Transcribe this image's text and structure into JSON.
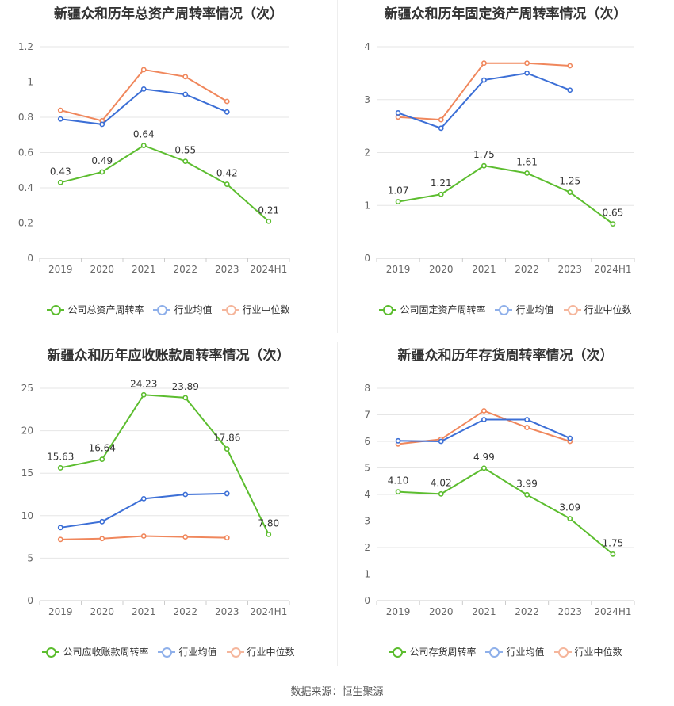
{
  "colors": {
    "company": "#5cbd2f",
    "industry_avg": "#3c6fd6",
    "industry_median": "#f0875c",
    "grid": "#e6e6e6"
  },
  "source_text": "数据来源：恒生聚源",
  "chart_data": [
    {
      "type": "line",
      "title": "新疆众和历年总资产周转率情况（次）",
      "categories": [
        "2019",
        "2020",
        "2021",
        "2022",
        "2023",
        "2024H1"
      ],
      "ylim": [
        0,
        1.2
      ],
      "yticks": [
        "0",
        "0.2",
        "0.4",
        "0.6",
        "0.8",
        "1",
        "1.2"
      ],
      "ytick_values": [
        0,
        0.2,
        0.4,
        0.6,
        0.8,
        1.0,
        1.2
      ],
      "legend_position": "bottom",
      "series": [
        {
          "name": "公司总资产周转率",
          "role": "company",
          "values": [
            0.43,
            0.49,
            0.64,
            0.55,
            0.42,
            0.21
          ],
          "labels": [
            "0.43",
            "0.49",
            "0.64",
            "0.55",
            "0.42",
            "0.21"
          ]
        },
        {
          "name": "行业均值",
          "role": "industry_avg",
          "values": [
            0.79,
            0.76,
            0.96,
            0.93,
            0.83,
            null
          ]
        },
        {
          "name": "行业中位数",
          "role": "industry_median",
          "values": [
            0.84,
            0.78,
            1.07,
            1.03,
            0.89,
            null
          ]
        }
      ]
    },
    {
      "type": "line",
      "title": "新疆众和历年固定资产周转率情况（次）",
      "categories": [
        "2019",
        "2020",
        "2021",
        "2022",
        "2023",
        "2024H1"
      ],
      "ylim": [
        0,
        4
      ],
      "yticks": [
        "0",
        "1",
        "2",
        "3",
        "4"
      ],
      "ytick_values": [
        0,
        1,
        2,
        3,
        4
      ],
      "legend_position": "bottom",
      "series": [
        {
          "name": "公司固定资产周转率",
          "role": "company",
          "values": [
            1.07,
            1.21,
            1.75,
            1.61,
            1.25,
            0.65
          ],
          "labels": [
            "1.07",
            "1.21",
            "1.75",
            "1.61",
            "1.25",
            "0.65"
          ]
        },
        {
          "name": "行业均值",
          "role": "industry_avg",
          "values": [
            2.75,
            2.46,
            3.37,
            3.5,
            3.18,
            null
          ]
        },
        {
          "name": "行业中位数",
          "role": "industry_median",
          "values": [
            2.67,
            2.62,
            3.69,
            3.69,
            3.64,
            null
          ]
        }
      ]
    },
    {
      "type": "line",
      "title": "新疆众和历年应收账款周转率情况（次）",
      "categories": [
        "2019",
        "2020",
        "2021",
        "2022",
        "2023",
        "2024H1"
      ],
      "ylim": [
        0,
        25
      ],
      "yticks": [
        "0",
        "5",
        "10",
        "15",
        "20",
        "25"
      ],
      "ytick_values": [
        0,
        5,
        10,
        15,
        20,
        25
      ],
      "legend_position": "bottom",
      "series": [
        {
          "name": "公司应收账款周转率",
          "role": "company",
          "values": [
            15.63,
            16.64,
            24.23,
            23.89,
            17.86,
            7.8
          ],
          "labels": [
            "15.63",
            "16.64",
            "24.23",
            "23.89",
            "17.86",
            "7.80"
          ]
        },
        {
          "name": "行业均值",
          "role": "industry_avg",
          "values": [
            8.6,
            9.3,
            12.0,
            12.5,
            12.6,
            null
          ]
        },
        {
          "name": "行业中位数",
          "role": "industry_median",
          "values": [
            7.2,
            7.3,
            7.6,
            7.5,
            7.4,
            null
          ]
        }
      ]
    },
    {
      "type": "line",
      "title": "新疆众和历年存货周转率情况（次）",
      "categories": [
        "2019",
        "2020",
        "2021",
        "2022",
        "2023",
        "2024H1"
      ],
      "ylim": [
        0,
        8
      ],
      "yticks": [
        "0",
        "1",
        "2",
        "3",
        "4",
        "5",
        "6",
        "7",
        "8"
      ],
      "ytick_values": [
        0,
        1,
        2,
        3,
        4,
        5,
        6,
        7,
        8
      ],
      "legend_position": "bottom",
      "series": [
        {
          "name": "公司存货周转率",
          "role": "company",
          "values": [
            4.1,
            4.02,
            4.99,
            3.99,
            3.09,
            1.75
          ],
          "labels": [
            "4.10",
            "4.02",
            "4.99",
            "3.99",
            "3.09",
            "1.75"
          ]
        },
        {
          "name": "行业均值",
          "role": "industry_avg",
          "values": [
            6.02,
            6.0,
            6.82,
            6.82,
            6.12,
            null
          ]
        },
        {
          "name": "行业中位数",
          "role": "industry_median",
          "values": [
            5.9,
            6.08,
            7.15,
            6.52,
            6.0,
            null
          ]
        }
      ]
    }
  ]
}
